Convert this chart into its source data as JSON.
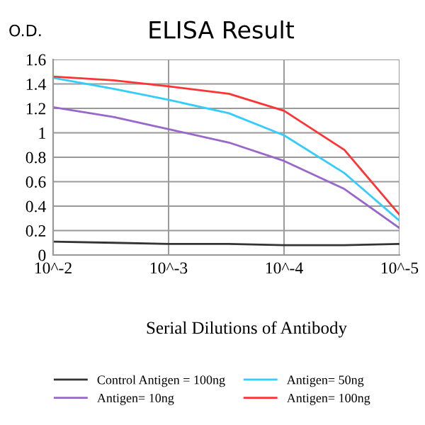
{
  "chart_data": {
    "type": "line",
    "title": "ELISA Result",
    "ylabel": "O.D.",
    "xlabel": "Serial Dilutions of Antibody",
    "x": [
      0.01,
      0.003,
      0.001,
      0.0003,
      0.0001,
      3e-05,
      1e-05
    ],
    "log": "x",
    "series": [
      {
        "name": "Control Antigen = 100ng",
        "color": "#333333",
        "values": [
          0.11,
          0.1,
          0.09,
          0.09,
          0.08,
          0.08,
          0.09
        ]
      },
      {
        "name": "Antigen= 10ng",
        "color": "#9966cc",
        "values": [
          1.21,
          1.13,
          1.03,
          0.92,
          0.77,
          0.54,
          0.22
        ]
      },
      {
        "name": "Antigen= 50ng",
        "color": "#33ccff",
        "values": [
          1.45,
          1.36,
          1.27,
          1.16,
          0.98,
          0.67,
          0.28
        ]
      },
      {
        "name": "Antigen= 100ng",
        "color": "#ff3333",
        "values": [
          1.46,
          1.43,
          1.38,
          1.32,
          1.18,
          0.86,
          0.33
        ]
      }
    ],
    "xlim": [
      0.01,
      1e-05
    ],
    "xticks": [
      {
        "value": 0.01,
        "label": "10^-2"
      },
      {
        "value": 0.001,
        "label": "10^-3"
      },
      {
        "value": 0.0001,
        "label": "10^-4"
      },
      {
        "value": 1e-05,
        "label": "10^-5"
      }
    ],
    "ylim": [
      0,
      1.6
    ],
    "yticks": [
      0,
      0.2,
      0.4,
      0.6,
      0.8,
      1,
      1.2,
      1.4,
      1.6
    ],
    "grid": true,
    "legend": "bottom",
    "marker": "none",
    "line_style": "solid"
  }
}
